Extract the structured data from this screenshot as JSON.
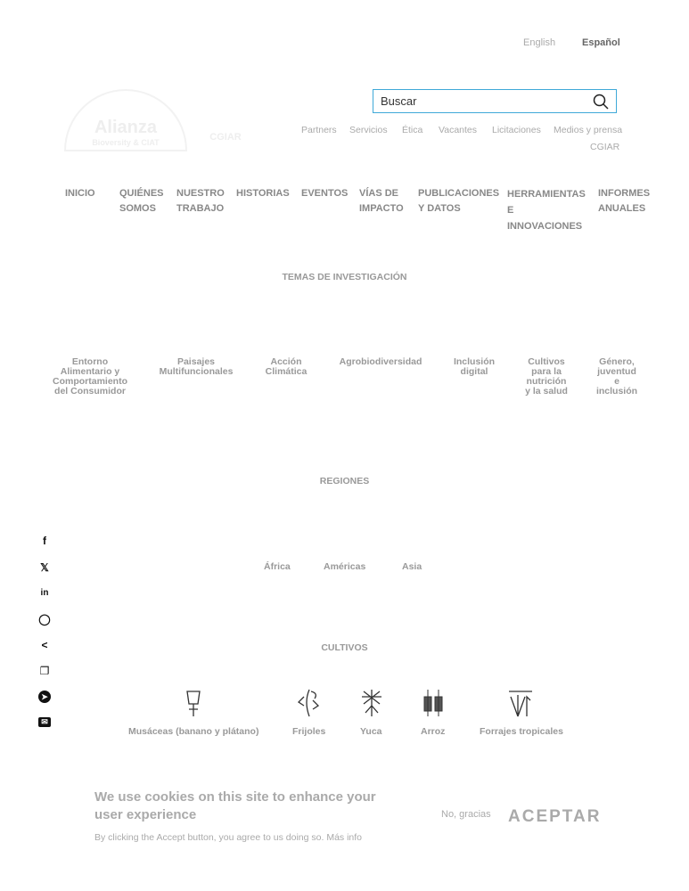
{
  "languages": {
    "english": "English",
    "spanish": "Español"
  },
  "logos": {
    "alliance": "Alianza Bioversity & CIAT",
    "cgiar": "CGIAR"
  },
  "search": {
    "placeholder": "Buscar"
  },
  "utility_links": [
    "Partners",
    "Servicios",
    "Ética",
    "Vacantes",
    "Licitaciones",
    "Medios y prensa",
    "CGIAR"
  ],
  "nav": [
    "INICIO",
    "QUIÉNES SOMOS",
    "NUESTRO TRABAJO",
    "HISTORIAS",
    "EVENTOS",
    "VÍAS DE IMPACTO",
    "PUBLICACIONES Y DATOS",
    "HERRAMIENTAS E INNOVACIONES",
    "INFORMES ANUALES"
  ],
  "research": {
    "title": "TEMAS DE INVESTIGACIÓN",
    "topics": [
      "Entorno Alimentario y Comportamiento del Consumidor",
      "Paisajes Multifuncionales",
      "Acción Climática",
      "Agrobiodiversidad",
      "Inclusión digital",
      "Cultivos para la nutrición y la salud",
      "Género, juventud e inclusión"
    ]
  },
  "regions": {
    "title": "REGIONES",
    "items": [
      "África",
      "Américas",
      "Asia"
    ]
  },
  "crops": {
    "title": "CULTIVOS",
    "items": [
      "Musáceas (banano y plátano)",
      "Frijoles",
      "Yuca",
      "Arroz",
      "Forrajes tropicales"
    ]
  },
  "share": [
    "facebook-icon",
    "x-icon",
    "linkedin-icon",
    "whatsapp-icon",
    "share-icon",
    "copy-icon",
    "telegram-icon",
    "email-icon"
  ],
  "cookie": {
    "title": "We use cookies on this site to enhance your user experience",
    "text": "By clicking the Accept button, you agree to us doing so.",
    "more": "Más info",
    "decline": "No, gracias",
    "accept": "ACEPTAR"
  }
}
